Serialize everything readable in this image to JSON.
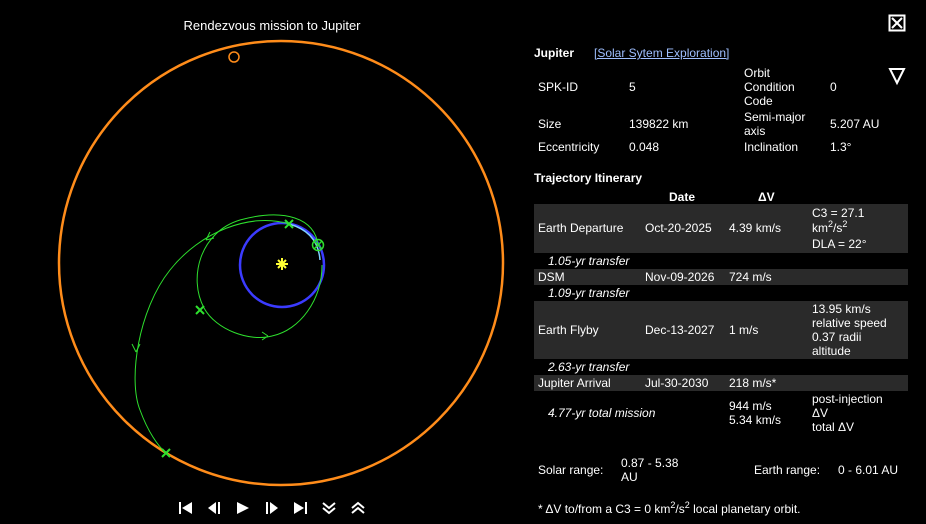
{
  "plot": {
    "title": "Rendezvous mission to Jupiter"
  },
  "controls": [
    "skip-to-start",
    "step-back",
    "play",
    "step-forward",
    "skip-to-end",
    "collapse-down",
    "expand-up"
  ],
  "colors": {
    "jupiter_orbit": "#ff8c1a",
    "earth_orbit": "#3b3bff",
    "trajectory": "#2ee02e",
    "sun": "#ffff33",
    "link": "#9fbfff",
    "row_bg": "#2a2a2a"
  },
  "body": {
    "name": "Jupiter",
    "link": "[Solar Sytem Exploration]",
    "spk_label": "SPK-ID",
    "spk_value": "5",
    "occ_label": "Orbit Condition Code",
    "occ_value": "0",
    "size_label": "Size",
    "size_value": "139822 km",
    "sma_label": "Semi-major axis",
    "sma_value": "5.207 AU",
    "ecc_label": "Eccentricity",
    "ecc_value": "0.048",
    "inc_label": "Inclination",
    "inc_value": "1.3°"
  },
  "itinerary": {
    "title": "Trajectory Itinerary",
    "col_date": "Date",
    "col_dv": "ΔV",
    "departure": {
      "event": "Earth Departure",
      "date": "Oct-20-2025",
      "dv": "4.39 km/s",
      "c3_prefix": "C3 = 27.1",
      "c3_unit": "km",
      "c3_exp1": "2",
      "c3_unit2": "/s",
      "c3_exp2": "2",
      "dla": "DLA = 22°"
    },
    "transfer1": "1.05-yr transfer",
    "dsm": {
      "event": "DSM",
      "date": "Nov-09-2026",
      "dv": "724 m/s"
    },
    "transfer2": "1.09-yr transfer",
    "flyby": {
      "event": "Earth Flyby",
      "date": "Dec-13-2027",
      "dv": "1 m/s",
      "note1": "13.95 km/s",
      "note2": "relative speed",
      "note3": "0.37 radii",
      "note4": "altitude"
    },
    "transfer3": "2.63-yr transfer",
    "arrival": {
      "event": "Jupiter Arrival",
      "date": "Jul-30-2030",
      "dv": "218 m/s*"
    },
    "total": {
      "label": "4.77-yr total mission",
      "dv1": "944 m/s",
      "dv2": "5.34 km/s",
      "note1": "post-injection",
      "note2": "ΔV",
      "note3": "total ΔV"
    }
  },
  "ranges": {
    "solar_label": "Solar range:",
    "solar_value1": "0.87 - 5.38",
    "solar_value2": "AU",
    "earth_label": "Earth range:",
    "earth_value": "0 - 6.01 AU"
  },
  "footnote": {
    "part1": "* ΔV to/from a C3 = 0 km",
    "exp1": "2",
    "part2": "/s",
    "exp2": "2",
    "part3": " local planetary orbit."
  }
}
